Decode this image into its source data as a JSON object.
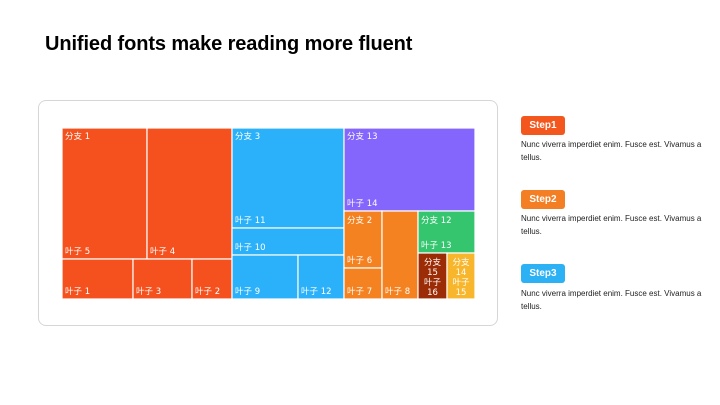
{
  "title": "Unified fonts make reading more fluent",
  "steps": [
    {
      "label": "Step1",
      "color": "#f4571d",
      "text": "Nunc viverra imperdiet enim. Fusce est. Vivamus a tellus."
    },
    {
      "label": "Step2",
      "color": "#f37e23",
      "text": "Nunc viverra imperdiet enim. Fusce est. Vivamus a tellus."
    },
    {
      "label": "Step3",
      "color": "#2bb1f4",
      "text": "Nunc viverra imperdiet enim. Fusce est. Vivamus a tellus."
    }
  ],
  "chart_data": {
    "type": "treemap",
    "title": "",
    "colors": {
      "branch1": "#f4511e",
      "branch3": "#2bb1fa",
      "branch13": "#8466fc",
      "branch2": "#f58220",
      "branch12": "#35c56f",
      "branch15": "#9b2c05",
      "branch14": "#f8b62c"
    },
    "branches": [
      {
        "name": "分支 1",
        "color_key": "branch1",
        "leaves": [
          "叶子 5",
          "叶子 4",
          "叶子 1",
          "叶子 3",
          "叶子 2"
        ]
      },
      {
        "name": "分支 3",
        "color_key": "branch3",
        "leaves": [
          "叶子 11",
          "叶子 10",
          "叶子 9",
          "叶子 12"
        ]
      },
      {
        "name": "分支 13",
        "color_key": "branch13",
        "leaves": [
          "叶子 14"
        ]
      },
      {
        "name": "分支 2",
        "color_key": "branch2",
        "leaves": [
          "叶子 6",
          "叶子 7",
          "叶子 8"
        ]
      },
      {
        "name": "分支 12",
        "color_key": "branch12",
        "leaves": [
          "叶子 13"
        ]
      },
      {
        "name": "分支 15",
        "color_key": "branch15",
        "leaves": [
          "叶子 16"
        ]
      },
      {
        "name": "分支 14",
        "color_key": "branch14",
        "leaves": [
          "叶子 15"
        ]
      }
    ]
  }
}
